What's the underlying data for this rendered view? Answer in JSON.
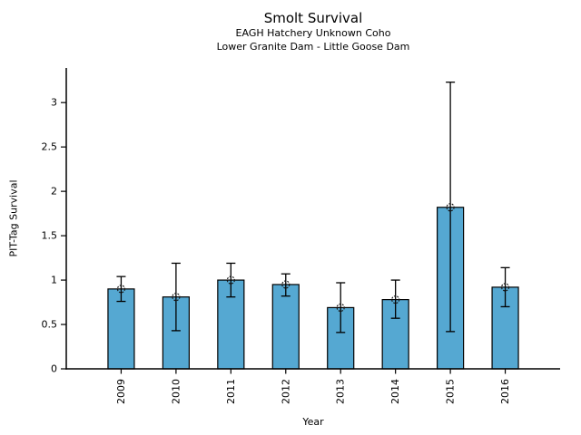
{
  "chart_data": {
    "type": "bar",
    "title": "Smolt Survival",
    "subtitle_line1": "EAGH Hatchery Unknown Coho",
    "subtitle_line2": "Lower Granite Dam - Little Goose Dam",
    "xlabel": "Year",
    "ylabel": "PIT-Tag Survival",
    "categories": [
      "2009",
      "2010",
      "2011",
      "2012",
      "2013",
      "2014",
      "2015",
      "2016"
    ],
    "values": [
      0.9,
      0.81,
      1.0,
      0.95,
      0.69,
      0.78,
      1.82,
      0.92
    ],
    "error_low": [
      0.76,
      0.43,
      0.81,
      0.82,
      0.41,
      0.57,
      0.42,
      0.7
    ],
    "error_high": [
      1.04,
      1.19,
      1.19,
      1.07,
      0.97,
      1.0,
      3.23,
      1.14
    ],
    "yticks": [
      0,
      0.5,
      1,
      1.5,
      2,
      2.5,
      3
    ],
    "ytick_labels": [
      "0",
      "0.5",
      "1",
      "1.5",
      "2",
      "2.5",
      "3"
    ],
    "ylim": [
      0,
      3.39
    ],
    "grid": false,
    "legend": "none",
    "x_tick_label_rotation_deg": 90,
    "bar_color": "#55A8D2",
    "bar_edge_color": "#000000",
    "error_color": "#000000",
    "marker": "open-circle"
  }
}
